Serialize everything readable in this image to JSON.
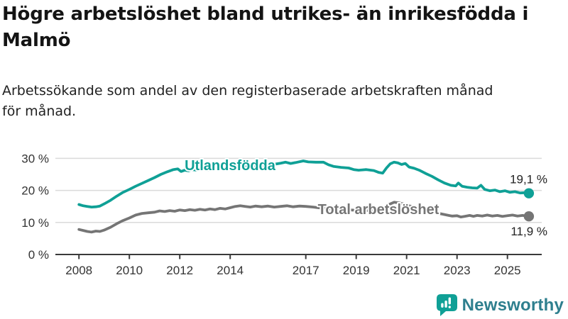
{
  "header": {
    "title": "Högre arbetslöshet bland utrikes- än inrikesfödda i Malmö",
    "subtitle": "Arbetssökande som andel av den registerbaserade arbetskraften månad för månad."
  },
  "colors": {
    "grid": "#DADADA",
    "axis": "#3A3A3A",
    "tick_text": "#333333",
    "end_label_text": "#222222",
    "title_text": "#141414",
    "subtitle_text": "#222222"
  },
  "chart_data": {
    "type": "line",
    "title": "Högre arbetslöshet bland utrikes- än inrikesfödda i Malmö",
    "subtitle": "Arbetssökande som andel av den registerbaserade arbetskraften månad för månad.",
    "grid": true,
    "legend_position": "inline-labels-on-lines",
    "x": {
      "label": "",
      "range": [
        2007.1,
        2026.3
      ],
      "ticks": [
        2008,
        2010,
        2012,
        2014,
        2017,
        2019,
        2021,
        2023,
        2025
      ]
    },
    "y": {
      "label": "",
      "range": [
        0,
        31
      ],
      "ticks": [
        0,
        10,
        20,
        30
      ],
      "tick_labels": [
        "0 %",
        "10 %",
        "20 %",
        "30 %"
      ]
    },
    "series": [
      {
        "name": "Utlandsfödda",
        "color": "#0FA096",
        "end_value": 19.1,
        "end_label": "19,1 %",
        "points": [
          [
            2008.0,
            15.6
          ],
          [
            2008.17,
            15.2
          ],
          [
            2008.33,
            15.0
          ],
          [
            2008.5,
            14.8
          ],
          [
            2008.67,
            14.9
          ],
          [
            2008.83,
            15.1
          ],
          [
            2009.0,
            15.8
          ],
          [
            2009.25,
            16.9
          ],
          [
            2009.5,
            18.2
          ],
          [
            2009.75,
            19.4
          ],
          [
            2010.0,
            20.3
          ],
          [
            2010.25,
            21.3
          ],
          [
            2010.5,
            22.2
          ],
          [
            2010.75,
            23.1
          ],
          [
            2011.0,
            24.0
          ],
          [
            2011.25,
            25.0
          ],
          [
            2011.5,
            25.8
          ],
          [
            2011.75,
            26.5
          ],
          [
            2011.92,
            26.7
          ],
          [
            2012.05,
            25.9
          ],
          [
            2012.2,
            26.3
          ],
          [
            2012.35,
            26.1
          ],
          [
            2012.5,
            26.5
          ],
          [
            2012.7,
            26.3
          ],
          [
            2012.9,
            26.6
          ],
          [
            2013.1,
            26.4
          ],
          [
            2013.3,
            26.7
          ],
          [
            2013.6,
            26.8
          ],
          [
            2013.9,
            27.0
          ],
          [
            2014.2,
            27.1
          ],
          [
            2014.5,
            27.3
          ],
          [
            2014.8,
            27.5
          ],
          [
            2015.1,
            27.7
          ],
          [
            2015.4,
            27.9
          ],
          [
            2015.7,
            28.1
          ],
          [
            2016.0,
            28.5
          ],
          [
            2016.2,
            28.8
          ],
          [
            2016.4,
            28.4
          ],
          [
            2016.6,
            28.7
          ],
          [
            2016.9,
            29.2
          ],
          [
            2017.1,
            28.9
          ],
          [
            2017.4,
            28.8
          ],
          [
            2017.7,
            28.8
          ],
          [
            2017.9,
            28.0
          ],
          [
            2018.1,
            27.5
          ],
          [
            2018.4,
            27.2
          ],
          [
            2018.7,
            27.0
          ],
          [
            2018.9,
            26.5
          ],
          [
            2019.1,
            26.3
          ],
          [
            2019.4,
            26.5
          ],
          [
            2019.7,
            26.2
          ],
          [
            2019.9,
            25.6
          ],
          [
            2020.05,
            25.4
          ],
          [
            2020.2,
            27.0
          ],
          [
            2020.35,
            28.3
          ],
          [
            2020.5,
            28.8
          ],
          [
            2020.65,
            28.6
          ],
          [
            2020.8,
            28.1
          ],
          [
            2020.95,
            28.4
          ],
          [
            2021.1,
            27.3
          ],
          [
            2021.3,
            26.9
          ],
          [
            2021.5,
            26.3
          ],
          [
            2021.75,
            25.3
          ],
          [
            2022.0,
            24.4
          ],
          [
            2022.25,
            23.3
          ],
          [
            2022.5,
            22.3
          ],
          [
            2022.75,
            21.6
          ],
          [
            2022.95,
            21.4
          ],
          [
            2023.05,
            22.3
          ],
          [
            2023.2,
            21.3
          ],
          [
            2023.4,
            21.0
          ],
          [
            2023.6,
            20.8
          ],
          [
            2023.8,
            20.7
          ],
          [
            2023.95,
            21.6
          ],
          [
            2024.1,
            20.3
          ],
          [
            2024.3,
            19.9
          ],
          [
            2024.5,
            20.1
          ],
          [
            2024.7,
            19.6
          ],
          [
            2024.9,
            19.9
          ],
          [
            2025.1,
            19.4
          ],
          [
            2025.3,
            19.6
          ],
          [
            2025.5,
            19.2
          ],
          [
            2025.7,
            19.3
          ],
          [
            2025.85,
            19.1
          ]
        ]
      },
      {
        "name": "Total arbetslöshet",
        "color": "#757575",
        "end_value": 11.9,
        "end_label": "11,9 %",
        "points": [
          [
            2008.0,
            7.8
          ],
          [
            2008.17,
            7.5
          ],
          [
            2008.33,
            7.2
          ],
          [
            2008.5,
            7.0
          ],
          [
            2008.67,
            7.3
          ],
          [
            2008.83,
            7.2
          ],
          [
            2009.0,
            7.6
          ],
          [
            2009.25,
            8.5
          ],
          [
            2009.5,
            9.6
          ],
          [
            2009.75,
            10.6
          ],
          [
            2010.0,
            11.4
          ],
          [
            2010.25,
            12.3
          ],
          [
            2010.5,
            12.8
          ],
          [
            2010.75,
            13.0
          ],
          [
            2011.0,
            13.2
          ],
          [
            2011.2,
            13.6
          ],
          [
            2011.4,
            13.4
          ],
          [
            2011.6,
            13.7
          ],
          [
            2011.8,
            13.5
          ],
          [
            2012.0,
            13.9
          ],
          [
            2012.2,
            13.7
          ],
          [
            2012.4,
            14.0
          ],
          [
            2012.6,
            13.8
          ],
          [
            2012.8,
            14.1
          ],
          [
            2013.0,
            13.9
          ],
          [
            2013.2,
            14.2
          ],
          [
            2013.4,
            14.0
          ],
          [
            2013.6,
            14.4
          ],
          [
            2013.8,
            14.2
          ],
          [
            2014.0,
            14.6
          ],
          [
            2014.2,
            15.0
          ],
          [
            2014.4,
            15.2
          ],
          [
            2014.6,
            15.0
          ],
          [
            2014.8,
            14.8
          ],
          [
            2015.0,
            15.1
          ],
          [
            2015.25,
            14.9
          ],
          [
            2015.5,
            15.1
          ],
          [
            2015.75,
            14.8
          ],
          [
            2016.0,
            15.0
          ],
          [
            2016.25,
            15.2
          ],
          [
            2016.5,
            14.9
          ],
          [
            2016.75,
            15.1
          ],
          [
            2017.0,
            15.0
          ],
          [
            2017.3,
            14.8
          ],
          [
            2017.6,
            14.5
          ],
          [
            2018.0,
            14.2
          ],
          [
            2018.5,
            14.0
          ],
          [
            2019.0,
            13.8
          ],
          [
            2019.5,
            13.7
          ],
          [
            2019.9,
            13.6
          ],
          [
            2020.1,
            14.2
          ],
          [
            2020.3,
            15.6
          ],
          [
            2020.5,
            16.3
          ],
          [
            2020.7,
            16.1
          ],
          [
            2020.9,
            15.7
          ],
          [
            2021.1,
            15.2
          ],
          [
            2021.4,
            14.6
          ],
          [
            2021.7,
            13.9
          ],
          [
            2022.0,
            13.3
          ],
          [
            2022.3,
            12.8
          ],
          [
            2022.6,
            12.3
          ],
          [
            2022.8,
            12.0
          ],
          [
            2023.0,
            12.1
          ],
          [
            2023.15,
            11.7
          ],
          [
            2023.3,
            11.9
          ],
          [
            2023.5,
            12.2
          ],
          [
            2023.65,
            11.9
          ],
          [
            2023.8,
            12.2
          ],
          [
            2024.0,
            12.0
          ],
          [
            2024.2,
            12.3
          ],
          [
            2024.4,
            12.0
          ],
          [
            2024.6,
            12.2
          ],
          [
            2024.8,
            11.9
          ],
          [
            2025.0,
            12.1
          ],
          [
            2025.2,
            12.3
          ],
          [
            2025.4,
            12.0
          ],
          [
            2025.6,
            12.2
          ],
          [
            2025.85,
            11.9
          ]
        ]
      }
    ]
  },
  "branding": {
    "name": "Newsworthy",
    "logo_icon": "speech-bubble-bar-chart-exclamation",
    "icon_color": "#10A096",
    "text_color": "#2E7F8E"
  }
}
